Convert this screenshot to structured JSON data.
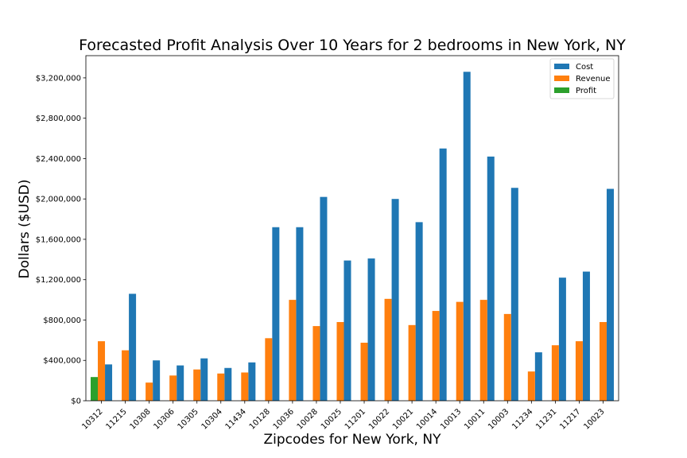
{
  "chart_data": {
    "type": "bar",
    "title": "Forecasted Profit Analysis Over 10 Years for 2 bedrooms in New York, NY",
    "xlabel": "Zipcodes for New York, NY",
    "ylabel": "Dollars ($USD)",
    "ylim": [
      0,
      3420000
    ],
    "yticks": [
      0,
      400000,
      800000,
      1200000,
      1600000,
      2000000,
      2400000,
      2800000,
      3200000
    ],
    "ytick_labels": [
      "$0",
      "$400,000",
      "$800,000",
      "$1,200,000",
      "$1,600,000",
      "$2,000,000",
      "$2,400,000",
      "$2,800,000",
      "$3,200,000"
    ],
    "grid": false,
    "legend_position": "top-right",
    "categories": [
      "10312",
      "11215",
      "10308",
      "10306",
      "10305",
      "10304",
      "11434",
      "10128",
      "10036",
      "10028",
      "10025",
      "11201",
      "10022",
      "10021",
      "10014",
      "10013",
      "10011",
      "10003",
      "11234",
      "11231",
      "11217",
      "10023"
    ],
    "series": [
      {
        "name": "Cost",
        "color": "#1f77b4",
        "values": [
          360000,
          1060000,
          400000,
          350000,
          420000,
          325000,
          380000,
          1720000,
          1720000,
          2020000,
          1390000,
          1410000,
          2000000,
          1770000,
          2500000,
          3260000,
          2420000,
          2110000,
          480000,
          1220000,
          1280000,
          2100000
        ]
      },
      {
        "name": "Revenue",
        "color": "#ff7f0e",
        "values": [
          590000,
          500000,
          180000,
          250000,
          310000,
          270000,
          280000,
          620000,
          1000000,
          740000,
          780000,
          575000,
          1010000,
          750000,
          890000,
          980000,
          1000000,
          860000,
          290000,
          550000,
          590000,
          780000
        ]
      },
      {
        "name": "Profit",
        "color": "#2ca02c",
        "values": [
          235000,
          0,
          0,
          0,
          0,
          0,
          0,
          0,
          0,
          0,
          0,
          0,
          0,
          0,
          0,
          0,
          0,
          0,
          0,
          0,
          0,
          0
        ]
      }
    ]
  }
}
